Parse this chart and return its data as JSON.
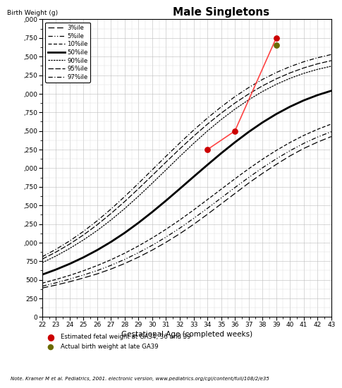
{
  "title": "Male Singletons",
  "xlabel": "Gestational Age (completed weeks)",
  "ylabel": "Birth Weight (g)",
  "x_min": 22,
  "x_max": 43,
  "y_min": 0,
  "y_max": 4000,
  "weeks": [
    22,
    23,
    24,
    25,
    26,
    27,
    28,
    29,
    30,
    31,
    32,
    33,
    34,
    35,
    36,
    37,
    38,
    39,
    40,
    41,
    42,
    43
  ],
  "p3": [
    390,
    430,
    475,
    525,
    580,
    645,
    720,
    805,
    900,
    1005,
    1120,
    1245,
    1380,
    1520,
    1660,
    1800,
    1930,
    2050,
    2165,
    2265,
    2350,
    2425
  ],
  "p5": [
    415,
    460,
    510,
    565,
    625,
    695,
    775,
    865,
    965,
    1075,
    1195,
    1325,
    1460,
    1600,
    1740,
    1875,
    2005,
    2125,
    2235,
    2333,
    2418,
    2490
  ],
  "p10": [
    455,
    505,
    560,
    622,
    692,
    770,
    858,
    956,
    1063,
    1180,
    1305,
    1438,
    1577,
    1717,
    1857,
    1992,
    2120,
    2238,
    2345,
    2440,
    2522,
    2593
  ],
  "p50": [
    570,
    638,
    715,
    802,
    900,
    1010,
    1132,
    1267,
    1412,
    1565,
    1724,
    1885,
    2044,
    2200,
    2348,
    2487,
    2614,
    2727,
    2826,
    2911,
    2982,
    3040
  ],
  "p90": [
    730,
    820,
    922,
    1036,
    1163,
    1304,
    1458,
    1624,
    1799,
    1978,
    2158,
    2333,
    2499,
    2653,
    2793,
    2919,
    3030,
    3126,
    3207,
    3274,
    3328,
    3370
  ],
  "p95": [
    778,
    873,
    981,
    1103,
    1240,
    1391,
    1553,
    1725,
    1903,
    2083,
    2260,
    2430,
    2591,
    2739,
    2875,
    2997,
    3106,
    3200,
    3280,
    3347,
    3402,
    3445
  ],
  "p97": [
    810,
    910,
    1023,
    1151,
    1294,
    1451,
    1620,
    1797,
    1979,
    2161,
    2339,
    2511,
    2673,
    2823,
    2961,
    3083,
    3192,
    3285,
    3364,
    3430,
    3484,
    3527
  ],
  "est_weeks": [
    34,
    36,
    39
  ],
  "est_weights": [
    2250,
    2500,
    3750
  ],
  "actual_week": 39,
  "actual_weight": 3650,
  "legend_labels": [
    "3%ile",
    "5%ile",
    "10%ile",
    "50%ile",
    "90%ile",
    "95%ile",
    "97%ile"
  ],
  "note": "Note. Kramer M et al. Pediatrics, 2001. electronic version, www.pediatrics.org/cgi/content/full/108/2/e35",
  "marker_label1": "Estimated fetal weight at GA34, 36 and 39",
  "marker_label2": "Actual birth weight at late GA39"
}
